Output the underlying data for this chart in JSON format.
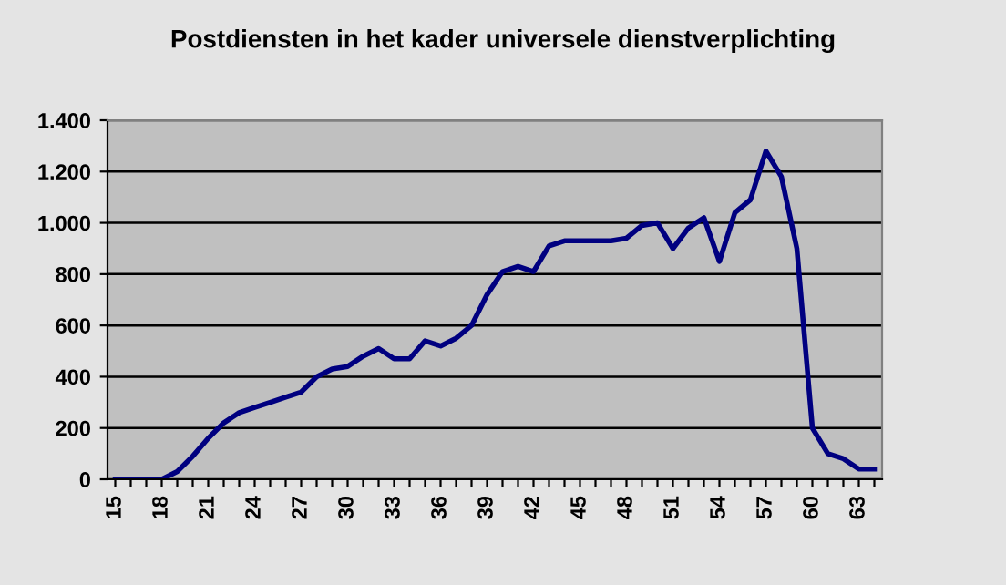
{
  "chart_data": {
    "type": "line",
    "title": "Postdiensten in het kader universele dienstverplichting",
    "categories": [
      "15",
      null,
      null,
      "18",
      null,
      null,
      "21",
      null,
      null,
      "24",
      null,
      null,
      "27",
      null,
      null,
      "30",
      null,
      null,
      "33",
      null,
      null,
      "36",
      null,
      null,
      "39",
      null,
      null,
      "42",
      null,
      null,
      "45",
      null,
      null,
      "48",
      null,
      null,
      "51",
      null,
      null,
      "54",
      null,
      null,
      "57",
      null,
      null,
      "60",
      null,
      null,
      "63",
      null
    ],
    "series": [
      {
        "color": "#000080",
        "values": [
          0,
          0,
          0,
          0,
          30,
          90,
          160,
          220,
          260,
          280,
          300,
          320,
          340,
          400,
          430,
          440,
          480,
          510,
          470,
          470,
          540,
          520,
          550,
          600,
          720,
          810,
          830,
          810,
          910,
          930,
          930,
          930,
          930,
          940,
          990,
          1000,
          900,
          980,
          1020,
          850,
          1040,
          1090,
          1280,
          1180,
          900,
          200,
          100,
          80,
          40,
          40
        ]
      }
    ],
    "ylim": [
      0,
      1400
    ],
    "yticks": [
      {
        "value": 0,
        "label": "0"
      },
      {
        "value": 200,
        "label": "200"
      },
      {
        "value": 400,
        "label": "400"
      },
      {
        "value": 600,
        "label": "600"
      },
      {
        "value": 800,
        "label": "800"
      },
      {
        "value": 1000,
        "label": "1.000"
      },
      {
        "value": 1200,
        "label": "1.200"
      },
      {
        "value": 1400,
        "label": "1.400"
      }
    ],
    "grid": "y",
    "marker": "none",
    "line_style": "solid",
    "legend": false
  }
}
